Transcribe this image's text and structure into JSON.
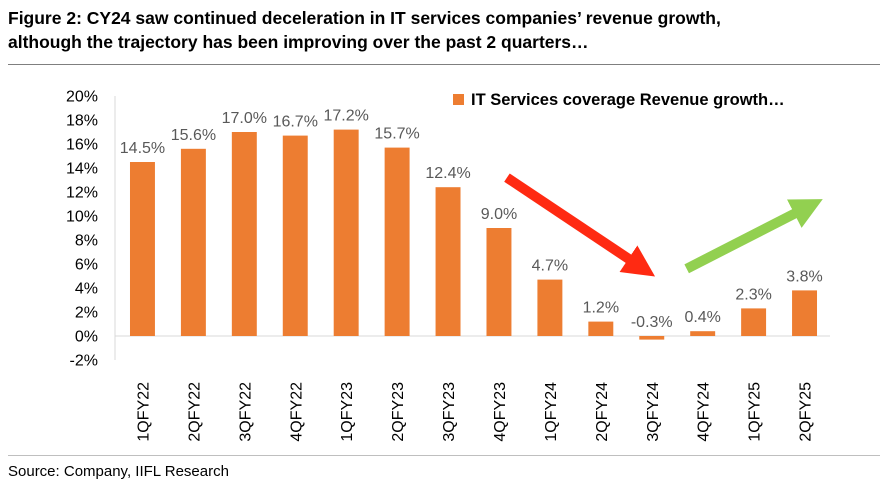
{
  "figure": {
    "title_line1": "Figure 2:  CY24 saw continued deceleration in IT services companies’ revenue growth,",
    "title_line2": "although the trajectory has been improving over the past 2 quarters…",
    "source": "Source: Company, IIFL Research"
  },
  "chart_data": {
    "type": "bar",
    "categories": [
      "1QFY22",
      "2QFY22",
      "3QFY22",
      "4QFY22",
      "1QFY23",
      "2QFY23",
      "3QFY23",
      "4QFY23",
      "1QFY24",
      "2QFY24",
      "3QFY24",
      "4QFY24",
      "1QFY25",
      "2QFY25"
    ],
    "series": [
      {
        "name": "IT Services coverage Revenue growth…",
        "values": [
          14.5,
          15.6,
          17.0,
          16.7,
          17.2,
          15.7,
          12.4,
          9.0,
          4.7,
          1.2,
          -0.3,
          0.4,
          2.3,
          3.8
        ],
        "labels": [
          "14.5%",
          "15.6%",
          "17.0%",
          "16.7%",
          "17.2%",
          "15.7%",
          "12.4%",
          "9.0%",
          "4.7%",
          "1.2%",
          "-0.3%",
          "0.4%",
          "2.3%",
          "3.8%"
        ]
      }
    ],
    "yticks": [
      20,
      18,
      16,
      14,
      12,
      10,
      8,
      6,
      4,
      2,
      0,
      -2
    ],
    "ytick_labels": [
      "20%",
      "18%",
      "16%",
      "14%",
      "12%",
      "10%",
      "8%",
      "6%",
      "4%",
      "2%",
      "0%",
      "-2%"
    ],
    "ylim": [
      -2,
      20
    ],
    "legend_position": "top-right",
    "grid": false,
    "colors": {
      "bar": "#ED7D31",
      "down_arrow": "#FF2A12",
      "up_arrow": "#92D050"
    },
    "annotations": [
      {
        "type": "arrow",
        "direction": "down",
        "color": "#FF2A12",
        "from_category": "4QFY23",
        "to_category": "3QFY24"
      },
      {
        "type": "arrow",
        "direction": "up",
        "color": "#92D050",
        "from_category": "4QFY24",
        "to_category": "2QFY25"
      }
    ]
  }
}
